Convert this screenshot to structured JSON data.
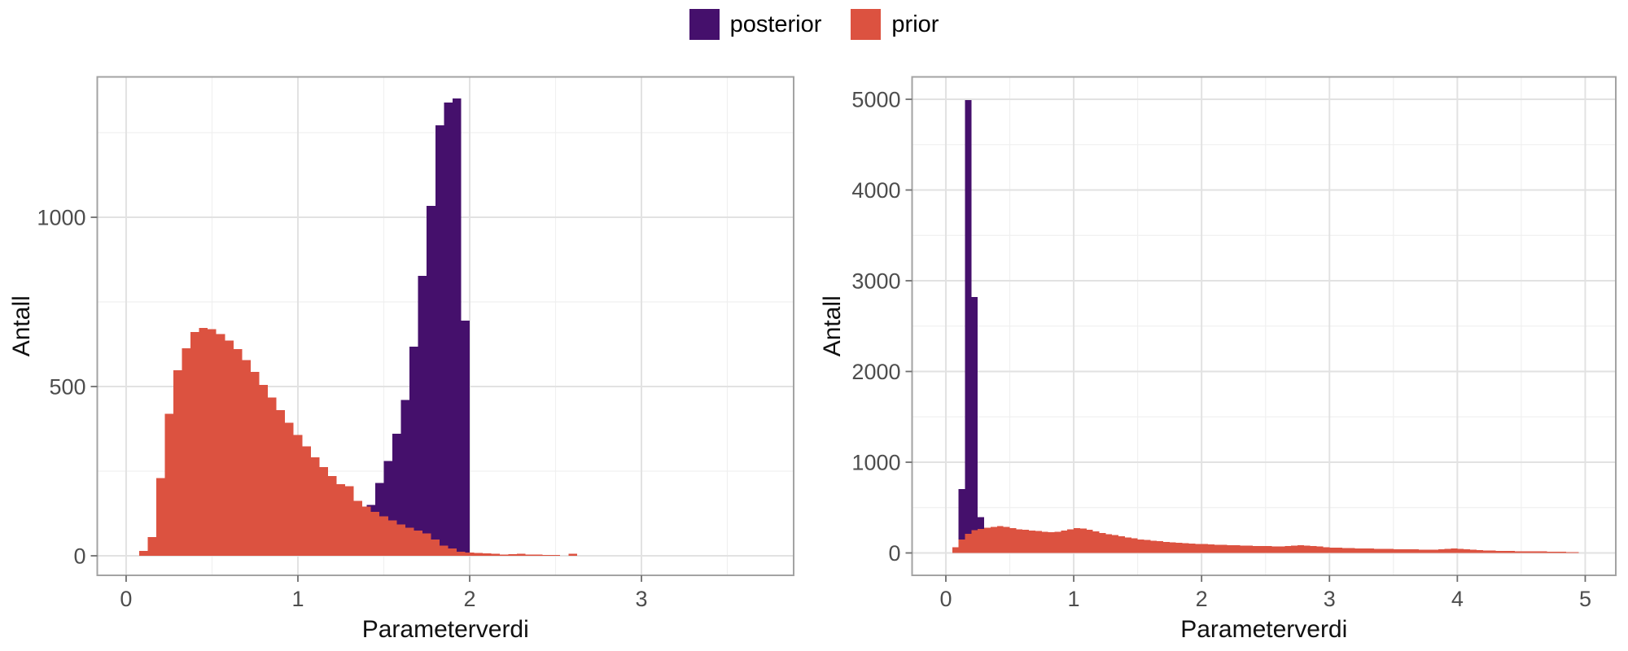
{
  "figure": {
    "legend": {
      "items": [
        {
          "label": "posterior",
          "color": "#45106c"
        },
        {
          "label": "prior",
          "color": "#dc5240"
        }
      ]
    },
    "colors": {
      "posterior": "#45106c",
      "prior": "#dc5240",
      "grid_major": "#e2e2e2",
      "grid_minor": "#f0f0f0",
      "panel_border": "#a3a3a3",
      "tick_mark": "#6e6e6e",
      "tick_text": "#4d4d4d",
      "axis_title": "#111111",
      "panel_bg": "#ffffff"
    }
  },
  "chart_data": [
    {
      "type": "bar",
      "subtype": "histogram",
      "panel": "left",
      "xlabel": "Parameterverdi",
      "ylabel": "Antall",
      "x_ticks": [
        0,
        1,
        2,
        3
      ],
      "y_ticks": [
        0,
        500,
        1000
      ],
      "x_minor": [
        0.5,
        1.5,
        2.5,
        3.5
      ],
      "y_minor": [
        250,
        750,
        1250
      ],
      "xlim": [
        -0.168,
        3.886
      ],
      "ylim": [
        -57.7,
        1414.7
      ],
      "binwidth": 0.05,
      "grid": true,
      "legend_position": "top",
      "series": [
        {
          "name": "posterior",
          "color": "#45106c",
          "start": 1.2,
          "counts": [
            10,
            25,
            70,
            105,
            150,
            215,
            280,
            360,
            460,
            618,
            827,
            1034,
            1272,
            1339,
            1351,
            695
          ]
        },
        {
          "name": "prior",
          "color": "#dc5240",
          "start": 0.075,
          "counts": [
            14,
            55,
            230,
            420,
            548,
            613,
            661,
            673,
            670,
            655,
            636,
            610,
            578,
            543,
            505,
            467,
            430,
            393,
            357,
            323,
            291,
            262,
            236,
            212,
            205,
            162,
            145,
            130,
            116,
            104,
            93,
            83,
            74,
            66,
            48,
            30,
            22,
            12,
            10,
            9,
            7,
            6,
            4,
            5,
            6,
            4,
            3,
            2,
            2,
            0,
            6
          ]
        }
      ]
    },
    {
      "type": "bar",
      "subtype": "histogram",
      "panel": "right",
      "xlabel": "Parameterverdi",
      "ylabel": "Antall",
      "x_ticks": [
        0,
        1,
        2,
        3,
        4,
        5
      ],
      "y_ticks": [
        0,
        1000,
        2000,
        3000,
        4000,
        5000
      ],
      "x_minor": [
        0.5,
        1.5,
        2.5,
        3.5,
        4.5
      ],
      "y_minor": [
        500,
        1500,
        2500,
        3500,
        4500
      ],
      "xlim": [
        -0.264,
        5.239
      ],
      "ylim": [
        -246.6,
        5246.6
      ],
      "binwidth": 0.05,
      "grid": true,
      "legend_position": "top",
      "series": [
        {
          "name": "posterior",
          "color": "#45106c",
          "start": 0.05,
          "counts": [
            60,
            704,
            4990,
            2820,
            395,
            180,
            80,
            35,
            15,
            6
          ]
        },
        {
          "name": "prior",
          "color": "#dc5240",
          "start": 0.05,
          "counts": [
            65,
            150,
            210,
            250,
            265,
            278,
            289,
            295,
            288,
            272,
            262,
            255,
            248,
            240,
            232,
            228,
            232,
            245,
            262,
            272,
            268,
            255,
            238,
            222,
            208,
            196,
            185,
            172,
            160,
            150,
            142,
            135,
            128,
            122,
            116,
            112,
            108,
            104,
            100,
            97,
            94,
            91,
            88,
            86,
            84,
            82,
            80,
            78,
            76,
            75,
            74,
            74,
            76,
            80,
            84,
            82,
            76,
            70,
            64,
            60,
            57,
            55,
            53,
            51,
            49,
            48,
            46,
            45,
            44,
            42,
            41,
            40,
            39,
            38,
            38,
            37,
            40,
            46,
            50,
            46,
            40,
            34,
            30,
            28,
            26,
            24,
            22,
            21,
            20,
            19,
            18,
            17,
            16,
            15,
            13,
            12,
            10,
            9
          ]
        }
      ]
    }
  ]
}
